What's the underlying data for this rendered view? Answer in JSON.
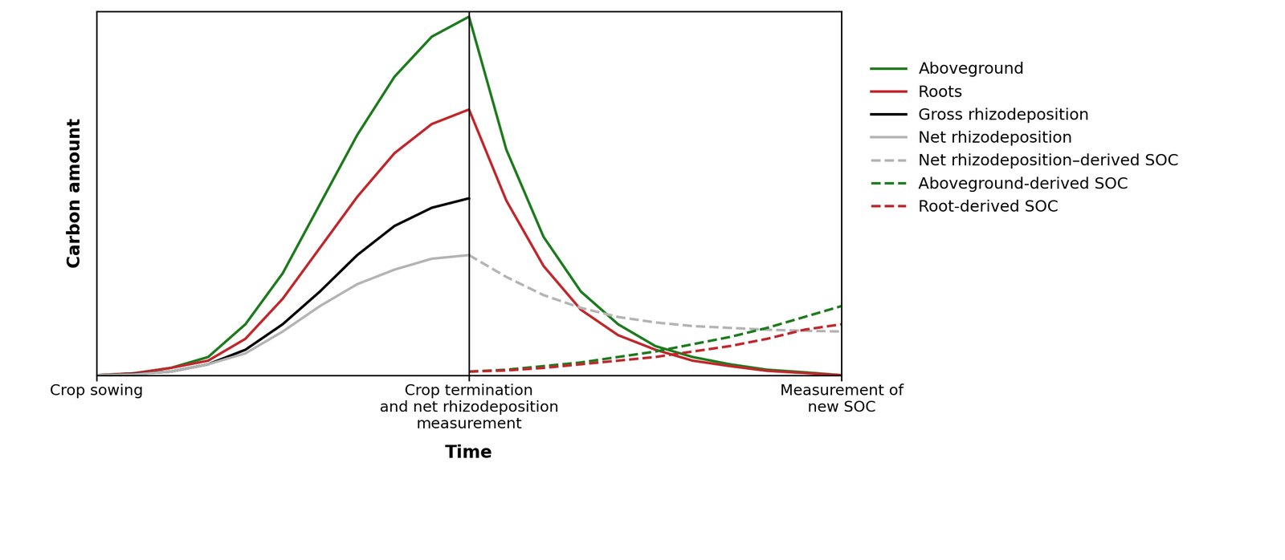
{
  "chart_data": {
    "type": "line",
    "x_label": "Time",
    "y_label": "Carbon amount",
    "x": [
      0,
      0.5,
      1,
      1.5,
      2,
      2.5,
      3,
      3.5,
      4,
      4.5,
      5,
      5.5,
      6,
      6.5,
      7,
      7.5,
      8,
      8.5,
      9,
      9.5,
      10
    ],
    "xlim": [
      0,
      10
    ],
    "ylim": [
      0,
      100
    ],
    "xticks": [
      {
        "value": 0,
        "label": "Crop sowing"
      },
      {
        "value": 5,
        "label": "Crop termination\nand net rhizodeposition\nmeasurement"
      },
      {
        "value": 10,
        "label": "Measurement of\nnew SOC"
      }
    ],
    "yticks": [],
    "tick_labels": "x",
    "legend": "upper left",
    "series": [
      {
        "name": "Aboveground",
        "color": "#1e7b1e",
        "line_style": "solid",
        "values": [
          0,
          0.5,
          2,
          5,
          14,
          28,
          47,
          66,
          82,
          93,
          98.5,
          62,
          38,
          23,
          14,
          8,
          5,
          3,
          1.5,
          0.8,
          0
        ]
      },
      {
        "name": "Roots",
        "color": "#c0282d",
        "line_style": "solid",
        "values": [
          0,
          0.5,
          2,
          4,
          10,
          21,
          35,
          49,
          61,
          69,
          73,
          48,
          30,
          18,
          11,
          7,
          4,
          2.5,
          1.2,
          0.6,
          0
        ]
      },
      {
        "name": "Gross rhizodeposition",
        "color": "#000000",
        "line_style": "solid",
        "values": [
          0,
          0.3,
          1,
          3,
          7,
          14,
          23,
          33,
          41,
          46,
          48.6,
          null,
          null,
          null,
          null,
          null,
          null,
          null,
          null,
          null,
          null
        ]
      },
      {
        "name": "Net rhizodeposition",
        "color": "#b4b4b4",
        "line_style": "solid",
        "values": [
          0,
          0.2,
          1,
          3,
          6,
          12,
          19,
          25,
          29,
          32,
          33,
          null,
          null,
          null,
          null,
          null,
          null,
          null,
          null,
          null,
          null
        ]
      },
      {
        "name": "Net rhizodeposition–derived SOC",
        "color": "#b4b4b4",
        "line_style": "dashed",
        "values": [
          null,
          null,
          null,
          null,
          null,
          null,
          null,
          null,
          null,
          null,
          33,
          27,
          22,
          18.5,
          16,
          14.5,
          13.5,
          13,
          12.5,
          12.2,
          12
        ]
      },
      {
        "name": "Aboveground-derived SOC",
        "color": "#1e7b1e",
        "line_style": "dashed",
        "values": [
          null,
          null,
          null,
          null,
          null,
          null,
          null,
          null,
          null,
          null,
          1,
          1.5,
          2.5,
          3.5,
          5,
          6.5,
          8.5,
          10.5,
          13,
          16,
          19
        ]
      },
      {
        "name": "Root-derived SOC",
        "color": "#c0282d",
        "line_style": "dashed",
        "values": [
          null,
          null,
          null,
          null,
          null,
          null,
          null,
          null,
          null,
          null,
          1,
          1.3,
          2,
          3,
          4,
          5,
          6.5,
          8,
          10,
          12.5,
          14
        ]
      }
    ]
  }
}
